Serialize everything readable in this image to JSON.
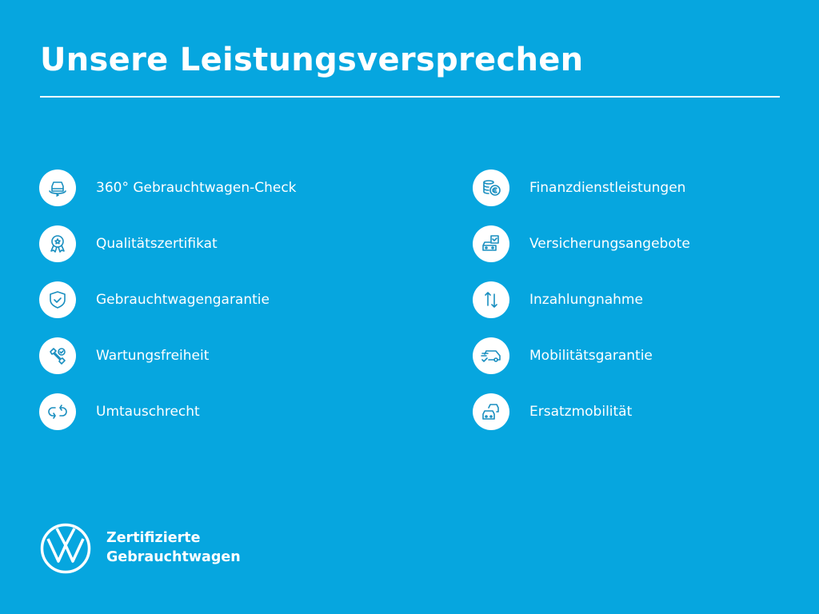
{
  "title": "Unsere Leistungsversprechen",
  "left_items": [
    {
      "label": "360° Gebrauchtwagen-Check",
      "icon": "car-360-icon"
    },
    {
      "label": "Qualitätszertifikat",
      "icon": "award-icon"
    },
    {
      "label": "Gebrauchtwagengarantie",
      "icon": "shield-check-icon"
    },
    {
      "label": "Wartungsfreiheit",
      "icon": "wrench-check-icon"
    },
    {
      "label": "Umtauschrecht",
      "icon": "exchange-icon"
    }
  ],
  "right_items": [
    {
      "label": "Finanzdienstleistungen",
      "icon": "coins-euro-icon"
    },
    {
      "label": "Versicherungsangebote",
      "icon": "car-insurance-icon"
    },
    {
      "label": "Inzahlungnahme",
      "icon": "arrows-up-down-icon"
    },
    {
      "label": "Mobilitätsgarantie",
      "icon": "van-check-icon"
    },
    {
      "label": "Ersatzmobilität",
      "icon": "replacement-car-icon"
    }
  ],
  "brand": {
    "line1": "Zertifizierte",
    "line2": "Gebrauchtwagen",
    "logo": "vw-logo"
  },
  "colors": {
    "background": "#06a6df",
    "foreground": "#ffffff"
  }
}
